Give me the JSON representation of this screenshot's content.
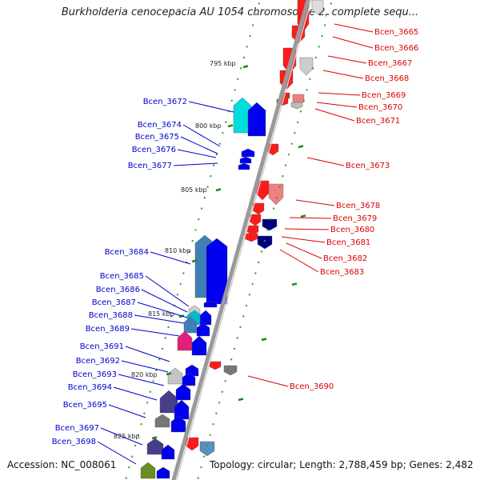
{
  "title": "Burkholderia cenocepacia AU 1054 chromosome 2, complete sequ...",
  "accession": "Accession: NC_008061",
  "topology": "Topology: circular; Length: 2,788,459 bp; Genes: 2,482",
  "colors": {
    "forward_label": "#0000cc",
    "reverse_label": "#dd0000",
    "backbone": "#9a9a9a",
    "ruler_ticks": "#1a8a1a"
  },
  "kbp_labels": [
    "795 kbp",
    "800 kbp",
    "805 kbp",
    "810 kbp",
    "815 kbp",
    "820 kbp",
    "825 kbp"
  ],
  "forward_genes": [
    "Bcen_3672",
    "Bcen_3674",
    "Bcen_3675",
    "Bcen_3676",
    "Bcen_3677",
    "Bcen_3684",
    "Bcen_3685",
    "Bcen_3686",
    "Bcen_3687",
    "Bcen_3688",
    "Bcen_3689",
    "Bcen_3691",
    "Bcen_3692",
    "Bcen_3693",
    "Bcen_3694",
    "Bcen_3695",
    "Bcen_3697",
    "Bcen_3698"
  ],
  "reverse_genes": [
    "Bcen_3665",
    "Bcen_3666",
    "Bcen_3667",
    "Bcen_3668",
    "Bcen_3669",
    "Bcen_3670",
    "Bcen_3671",
    "Bcen_3673",
    "Bcen_3678",
    "Bcen_3679",
    "Bcen_3680",
    "Bcen_3681",
    "Bcen_3682",
    "Bcen_3683",
    "Bcen_3690"
  ]
}
